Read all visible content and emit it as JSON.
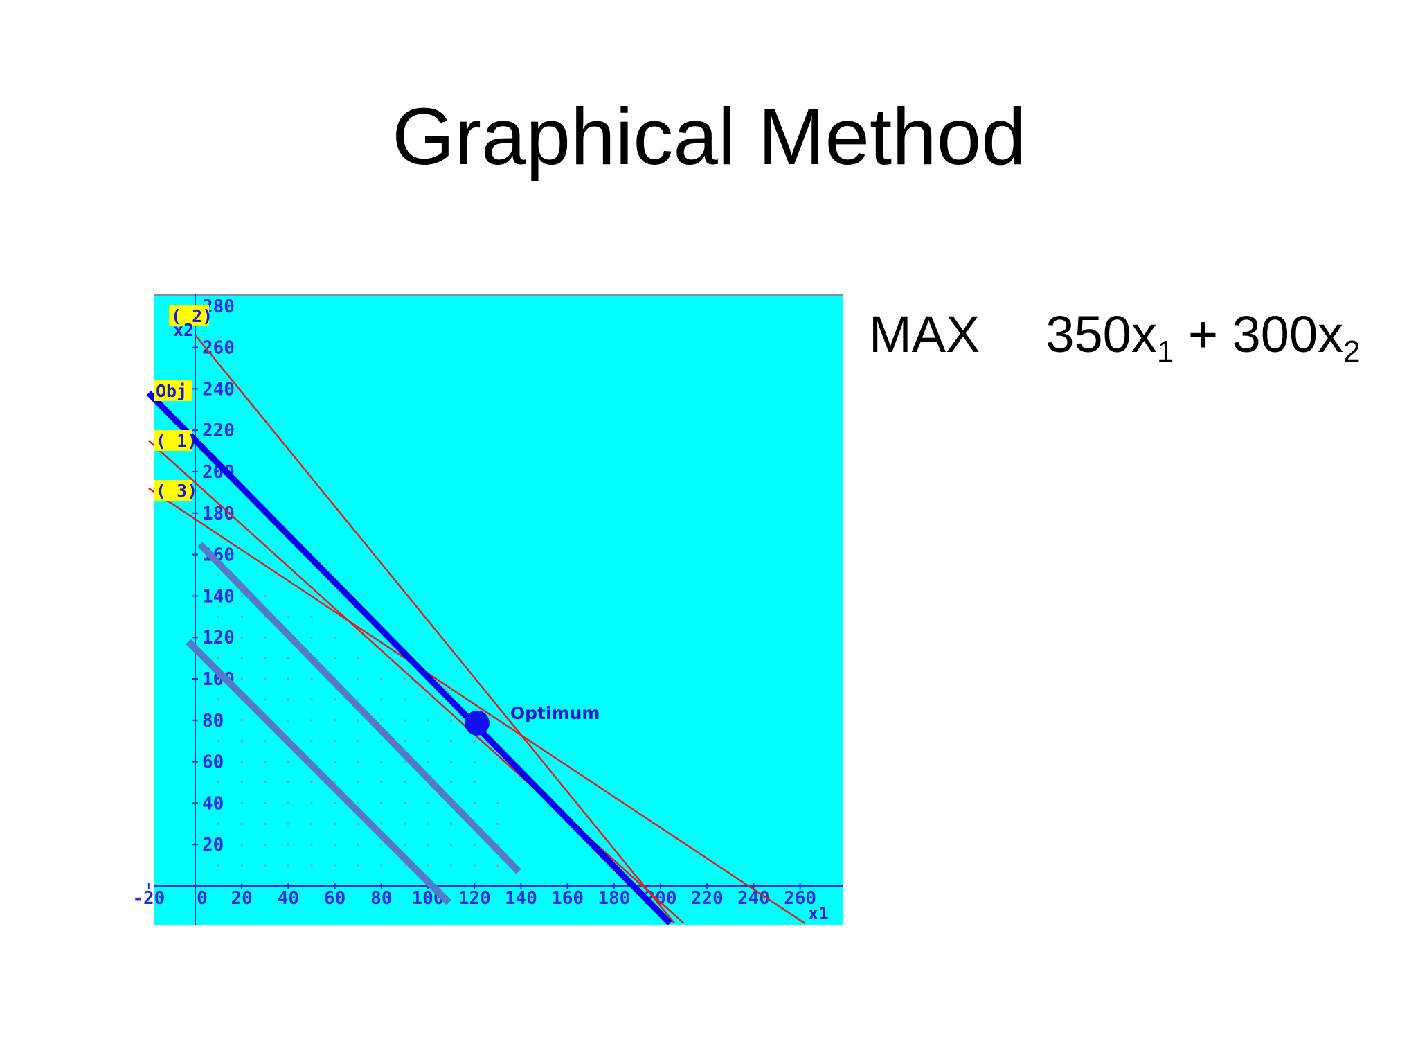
{
  "slide": {
    "title": "Graphical Method",
    "objective": {
      "sense": "MAX",
      "c1": "350x",
      "sub1": "1",
      "plus": " + ",
      "c2": "300x",
      "sub2": "2"
    }
  },
  "chart_data": {
    "type": "line",
    "title": "",
    "xlabel": "x1",
    "ylabel": "x2",
    "xlim": [
      -20,
      265
    ],
    "ylim": [
      -18,
      285
    ],
    "x_ticks": [
      -20,
      0,
      20,
      40,
      60,
      80,
      100,
      120,
      140,
      160,
      180,
      200,
      220,
      240,
      260
    ],
    "x_tick_labels": [
      "-20",
      "0",
      "20",
      "40",
      "60",
      "80",
      "100",
      "120",
      "140",
      "160",
      "180",
      "200",
      "220",
      "240",
      "260"
    ],
    "y_ticks": [
      20,
      40,
      60,
      80,
      100,
      120,
      140,
      160,
      180,
      200,
      220,
      240,
      260,
      280
    ],
    "y_tick_labels": [
      "20",
      "40",
      "60",
      "80",
      "100",
      "120",
      "140",
      "160",
      "180",
      "200",
      "220",
      "240",
      "260",
      "280"
    ],
    "background": "#00ffff",
    "constraint_color": "#e0201c",
    "objective_color": "#0000ee",
    "iso_profit_color": "#5878c8",
    "constraint_lines": [
      {
        "tag": "( 2)",
        "points": [
          [
            0,
            266
          ],
          [
            206,
            -18
          ]
        ]
      },
      {
        "tag": "( 1)",
        "points": [
          [
            -20,
            215
          ],
          [
            210,
            -18
          ]
        ]
      },
      {
        "tag": "( 3)",
        "points": [
          [
            -20,
            192
          ],
          [
            262,
            -18
          ]
        ]
      }
    ],
    "objective_line": {
      "tag": "Obj",
      "points": [
        [
          -20,
          238
        ],
        [
          204,
          -18
        ]
      ]
    },
    "iso_profit_lines": [
      {
        "points": [
          [
            2,
            165
          ],
          [
            139,
            7
          ]
        ]
      },
      {
        "points": [
          [
            -3,
            118
          ],
          [
            109,
            -8
          ]
        ]
      }
    ],
    "optimum": {
      "label": "Optimum",
      "x": 122,
      "y": 78
    },
    "feasible_region": [
      [
        0,
        0
      ],
      [
        0,
        160
      ],
      [
        40,
        140
      ],
      [
        122,
        78
      ],
      [
        140,
        0
      ]
    ],
    "grid": false,
    "legend": "none"
  }
}
